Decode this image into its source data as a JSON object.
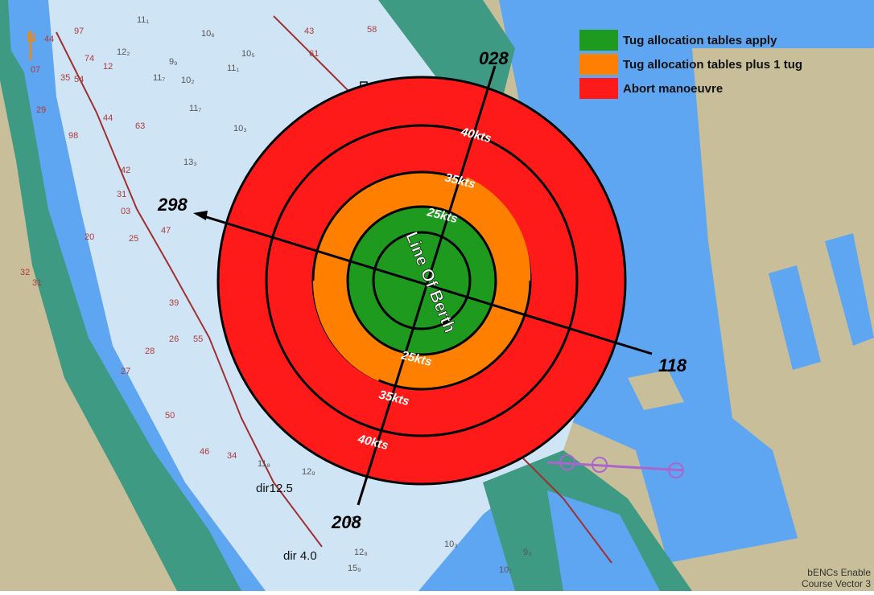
{
  "legend": [
    {
      "label": "Tug allocation tables apply",
      "color": "#1e9a1e"
    },
    {
      "label": "Tug allocation tables plus 1 tug",
      "color": "#ff8000"
    },
    {
      "label": "Abort manoeuvre",
      "color": "#ff1a1a"
    }
  ],
  "rings": {
    "inner_label": "25kts",
    "middle_label": "35kts",
    "outer_label": "40kts"
  },
  "line_of_berth": "Line Of Berth",
  "bearings": {
    "b028": "028",
    "b118": "118",
    "b208": "208",
    "b298": "298"
  },
  "chart_labels": {
    "dir125": "dir12.5",
    "dir40": "dir 4.0",
    "north": "N"
  },
  "soundings": [
    "11₁",
    "10₆",
    "12₂",
    "9₉",
    "11₇",
    "10₂",
    "10₅",
    "11₁",
    "11₇",
    "10₃",
    "13₃",
    "11₈",
    "12₉",
    "13₉",
    "12₈",
    "15₉",
    "10₃",
    "10₇",
    "9₃",
    "44",
    "97",
    "74",
    "12",
    "07",
    "35",
    "54",
    "44",
    "63",
    "29",
    "98",
    "42",
    "31",
    "03",
    "47",
    "20",
    "25",
    "32",
    "31",
    "39",
    "26",
    "55",
    "27",
    "28",
    "50",
    "46",
    "34",
    "43",
    "61",
    "58"
  ],
  "footer": {
    "line1": "bENCs Enable",
    "line2": "Course Vector 3"
  },
  "colors": {
    "green": "#1e9a1e",
    "orange": "#ff8000",
    "red": "#ff1a1a",
    "land": "#c8bf9a",
    "deep_water": "#5ea6f2",
    "shallow": "#3f9a84",
    "channel": "#cfe4f4"
  }
}
